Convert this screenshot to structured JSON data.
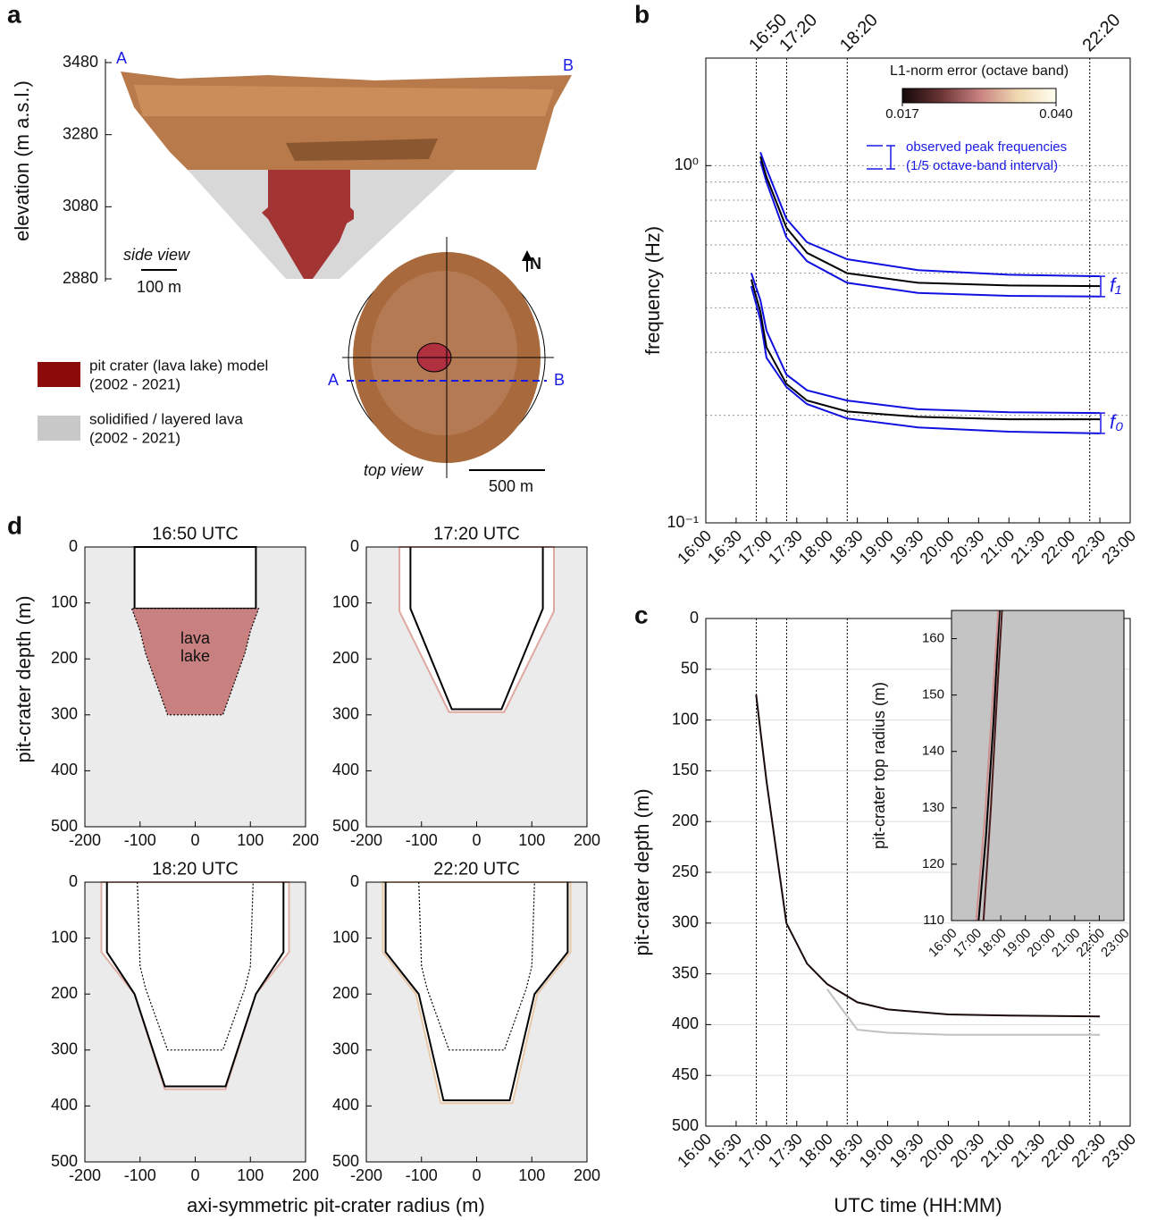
{
  "panel_labels": [
    "a",
    "b",
    "c",
    "d"
  ],
  "panel_a": {
    "ylabel": "elevation (m a.s.l.)",
    "ylim": [
      2880,
      3480
    ],
    "yticks": [
      2880,
      3080,
      3280,
      3480
    ],
    "section_start": "A",
    "section_end": "B",
    "side_view": "side view",
    "side_scale": "100 m",
    "north": "N",
    "top_start": "A",
    "top_end": "B",
    "top_view": "top view",
    "top_scale": "500 m",
    "legend": [
      {
        "label": [
          "pit crater (lava lake) model",
          "(2002 - 2021)"
        ],
        "color": "#8b0a0a"
      },
      {
        "label": [
          "solidified / layered lava",
          "(2002 - 2021)"
        ],
        "color": "#c8c8c8"
      }
    ]
  },
  "panel_d": {
    "ylabel": "pit-crater depth (m)",
    "xlabel": "axi-symmetric pit-crater radius (m)"
  },
  "chart_data": [
    {
      "type": "line",
      "ylabel": "frequency (Hz)",
      "yscale": "log",
      "grid": true,
      "xtick_rotation": -45,
      "xlim": [
        16,
        23
      ],
      "ylim": [
        0.1,
        2
      ],
      "xticks": [
        {
          "value": 16,
          "label": "16:00"
        },
        {
          "value": 16.5,
          "label": "16:30"
        },
        {
          "value": 17,
          "label": "17:00"
        },
        {
          "value": 17.5,
          "label": "17:30"
        },
        {
          "value": 18,
          "label": "18:00"
        },
        {
          "value": 18.5,
          "label": "18:30"
        },
        {
          "value": 19,
          "label": "19:00"
        },
        {
          "value": 19.5,
          "label": "19:30"
        },
        {
          "value": 20,
          "label": "20:00"
        },
        {
          "value": 20.5,
          "label": "20:30"
        },
        {
          "value": 21,
          "label": "21:00"
        },
        {
          "value": 21.5,
          "label": "21:30"
        },
        {
          "value": 22,
          "label": "22:00"
        },
        {
          "value": 22.5,
          "label": "22:30"
        },
        {
          "value": 23,
          "label": "23:00"
        }
      ],
      "yticks": [
        {
          "value": 0.1,
          "label": "10⁻¹"
        },
        {
          "value": 1,
          "label": "10⁰"
        }
      ],
      "yminor": [
        0.2,
        0.3,
        0.4,
        0.5,
        0.6,
        0.7,
        0.8,
        0.9,
        2
      ],
      "vlines": [
        {
          "value": 16.833,
          "label": "16:50"
        },
        {
          "value": 17.333,
          "label": "17:20"
        },
        {
          "value": 18.333,
          "label": "18:20"
        },
        {
          "value": 22.333,
          "label": "22:20"
        }
      ],
      "x": [
        16.75,
        16.9,
        17.0,
        17.33,
        17.67,
        18.33,
        19.5,
        21,
        22.5
      ],
      "series": [
        {
          "color": "#1010e0",
          "values": [
            null,
            1.09,
            0.98,
            0.71,
            0.61,
            0.547,
            0.51,
            0.495,
            0.49
          ]
        },
        {
          "color": "#1010e0",
          "values": [
            null,
            1.03,
            0.9,
            0.63,
            0.54,
            0.47,
            0.44,
            0.432,
            0.43
          ]
        },
        {
          "color": "#000000",
          "values": [
            null,
            1.06,
            0.93,
            0.67,
            0.57,
            0.5,
            0.47,
            0.462,
            0.46
          ]
        },
        {
          "color": "#1010e0",
          "values": [
            0.5,
            0.42,
            0.345,
            0.26,
            0.235,
            0.22,
            0.208,
            0.204,
            0.203
          ]
        },
        {
          "color": "#1010e0",
          "values": [
            0.46,
            0.37,
            0.29,
            0.24,
            0.215,
            0.196,
            0.185,
            0.18,
            0.178
          ]
        },
        {
          "color": "#000000",
          "values": [
            0.48,
            0.39,
            0.31,
            0.245,
            0.22,
            0.205,
            0.198,
            0.195,
            0.195
          ]
        }
      ],
      "colorbar": {
        "label": "L1-norm error (octave band)",
        "clim": [
          0.017,
          0.04
        ],
        "ticks": [
          0.017,
          {
            "value": 0.04,
            "label": "0.040"
          }
        ],
        "colors": [
          "#140808",
          "#6a3434",
          "#c88080",
          "#f0d8b0",
          "#fffef0"
        ]
      },
      "bound_note": [
        "observed peak frequencies",
        "(1/5 octave-band interval)"
      ],
      "annotations": [
        "f₁",
        "f₀"
      ]
    },
    {
      "type": "line",
      "ylabel": "pit-crater depth (m)",
      "xlabel": "UTC time (HH:MM)",
      "y_reversed": true,
      "grid": true,
      "xtick_rotation": -45,
      "xlim": [
        16,
        23
      ],
      "ylim": [
        0,
        500
      ],
      "xticks": [
        {
          "value": 16,
          "label": "16:00"
        },
        {
          "value": 16.5,
          "label": "16:30"
        },
        {
          "value": 17,
          "label": "17:00"
        },
        {
          "value": 17.5,
          "label": "17:30"
        },
        {
          "value": 18,
          "label": "18:00"
        },
        {
          "value": 18.5,
          "label": "18:30"
        },
        {
          "value": 19,
          "label": "19:00"
        },
        {
          "value": 19.5,
          "label": "19:30"
        },
        {
          "value": 20,
          "label": "20:00"
        },
        {
          "value": 20.5,
          "label": "20:30"
        },
        {
          "value": 21,
          "label": "21:00"
        },
        {
          "value": 21.5,
          "label": "21:30"
        },
        {
          "value": 22,
          "label": "22:00"
        },
        {
          "value": 22.5,
          "label": "22:30"
        },
        {
          "value": 23,
          "label": "23:00"
        }
      ],
      "yticks": [
        0,
        50,
        100,
        150,
        200,
        250,
        300,
        350,
        400,
        450,
        500
      ],
      "vlines": [
        {
          "value": 16.833
        },
        {
          "value": 17.333
        },
        {
          "value": 18.333
        },
        {
          "value": 22.333
        }
      ],
      "x": [
        16.83,
        17.0,
        17.33,
        17.67,
        18.0,
        18.5,
        19,
        20,
        21,
        22.5
      ],
      "series": [
        {
          "color": "#c0c0c0",
          "values": [
            null,
            null,
            null,
            null,
            365,
            405,
            408,
            410,
            410,
            410
          ]
        },
        {
          "color": "#1a0a0a",
          "values": [
            75,
            160,
            300,
            340,
            360,
            378,
            385,
            390,
            391,
            392
          ]
        }
      ]
    },
    {
      "type": "line",
      "ylabel": "pit-crater top radius (m)",
      "background": "#c4c4c4",
      "xtick_rotation": -45,
      "xlim": [
        16,
        23
      ],
      "ylim": [
        110,
        165
      ],
      "xticks": [
        {
          "value": 16,
          "label": "16:00"
        },
        {
          "value": 17,
          "label": "17:00"
        },
        {
          "value": 18,
          "label": "18:00"
        },
        {
          "value": 19,
          "label": "19:00"
        },
        {
          "value": 20,
          "label": "20:00"
        },
        {
          "value": 21,
          "label": "21:00"
        },
        {
          "value": 22,
          "label": "22:00"
        },
        {
          "value": 23,
          "label": "23:00"
        }
      ],
      "yticks": [
        110,
        120,
        130,
        140,
        150,
        160
      ],
      "series": [
        {
          "color": "#4a1c1c",
          "x": [
            17.3,
            17.6,
            17.85,
            18.05
          ],
          "values": [
            110,
            130,
            150,
            165
          ]
        },
        {
          "color": "#000000",
          "x": [
            17.1,
            17.4,
            17.7,
            17.95
          ],
          "values": [
            110,
            125,
            145,
            165
          ]
        },
        {
          "color": "#d09090",
          "x": [
            17.0,
            17.35,
            17.65,
            17.9
          ],
          "values": [
            110,
            128,
            148,
            165
          ]
        }
      ]
    },
    {
      "type": "line",
      "title": "16:50 UTC",
      "y_reversed": true,
      "background": "#ebebeb",
      "xlim": [
        -200,
        200
      ],
      "ylim": [
        0,
        500
      ],
      "xticks": [
        -200,
        -100,
        0,
        100,
        200
      ],
      "yticks": [
        0,
        100,
        200,
        300,
        400,
        500
      ],
      "note": [
        "lava",
        "lake"
      ],
      "series": [
        {
          "color": "#000000",
          "fill": "#ffffff",
          "x": [
            -110,
            -110,
            110,
            110
          ],
          "values": [
            0,
            110,
            110,
            0
          ]
        },
        {
          "color": "#000000",
          "fill": "#c98080",
          "style": "dotted",
          "x": [
            -115,
            -100,
            -90,
            -50,
            50,
            90,
            100,
            115
          ],
          "values": [
            110,
            150,
            190,
            300,
            300,
            190,
            150,
            110
          ]
        }
      ]
    },
    {
      "type": "line",
      "title": "17:20 UTC",
      "y_reversed": true,
      "background": "#ebebeb",
      "xlim": [
        -200,
        200
      ],
      "ylim": [
        0,
        500
      ],
      "xticks": [
        -200,
        -100,
        0,
        100,
        200
      ],
      "yticks": [
        0,
        100,
        200,
        300,
        400,
        500
      ],
      "series": [
        {
          "color": "#e0a8a0",
          "fill": "#ffffff",
          "x": [
            -140,
            -140,
            -50,
            50,
            140,
            140
          ],
          "values": [
            0,
            115,
            295,
            295,
            115,
            0
          ]
        },
        {
          "color": "#000000",
          "x": [
            -120,
            -120,
            -45,
            45,
            120,
            120
          ],
          "values": [
            0,
            110,
            290,
            290,
            110,
            0
          ]
        }
      ]
    },
    {
      "type": "line",
      "title": "18:20 UTC",
      "y_reversed": true,
      "background": "#ebebeb",
      "xlim": [
        -200,
        200
      ],
      "ylim": [
        0,
        500
      ],
      "xticks": [
        -200,
        -100,
        0,
        100,
        200
      ],
      "yticks": [
        0,
        100,
        200,
        300,
        400,
        500
      ],
      "series": [
        {
          "color": "#e0b0a8",
          "fill": "#ffffff",
          "x": [
            -170,
            -170,
            -110,
            -55,
            55,
            110,
            170,
            170
          ],
          "values": [
            0,
            125,
            200,
            370,
            370,
            200,
            125,
            0
          ]
        },
        {
          "color": "#000000",
          "style": "dotted",
          "x": [
            -105,
            -100,
            -90,
            -50,
            50,
            90,
            100,
            105
          ],
          "values": [
            0,
            150,
            190,
            300,
            300,
            190,
            150,
            0
          ]
        },
        {
          "color": "#000000",
          "x": [
            -160,
            -160,
            -110,
            -55,
            55,
            110,
            160,
            160
          ],
          "values": [
            0,
            125,
            200,
            365,
            365,
            200,
            125,
            0
          ]
        }
      ]
    },
    {
      "type": "line",
      "title": "22:20 UTC",
      "y_reversed": true,
      "background": "#ebebeb",
      "xlim": [
        -200,
        200
      ],
      "ylim": [
        0,
        500
      ],
      "xticks": [
        -200,
        -100,
        0,
        100,
        200
      ],
      "yticks": [
        0,
        100,
        200,
        300,
        400,
        500
      ],
      "series": [
        {
          "color": "#e8c8a8",
          "fill": "#ffffff",
          "x": [
            -170,
            -170,
            -110,
            -65,
            65,
            110,
            170,
            170
          ],
          "values": [
            0,
            125,
            200,
            395,
            395,
            200,
            125,
            0
          ]
        },
        {
          "color": "#000000",
          "style": "dotted",
          "x": [
            -105,
            -100,
            -90,
            -50,
            50,
            90,
            100,
            105
          ],
          "values": [
            0,
            150,
            190,
            300,
            300,
            190,
            150,
            0
          ]
        },
        {
          "color": "#000000",
          "x": [
            -165,
            -165,
            -105,
            -60,
            60,
            105,
            165,
            165
          ],
          "values": [
            0,
            125,
            200,
            390,
            390,
            200,
            125,
            0
          ]
        }
      ]
    }
  ]
}
